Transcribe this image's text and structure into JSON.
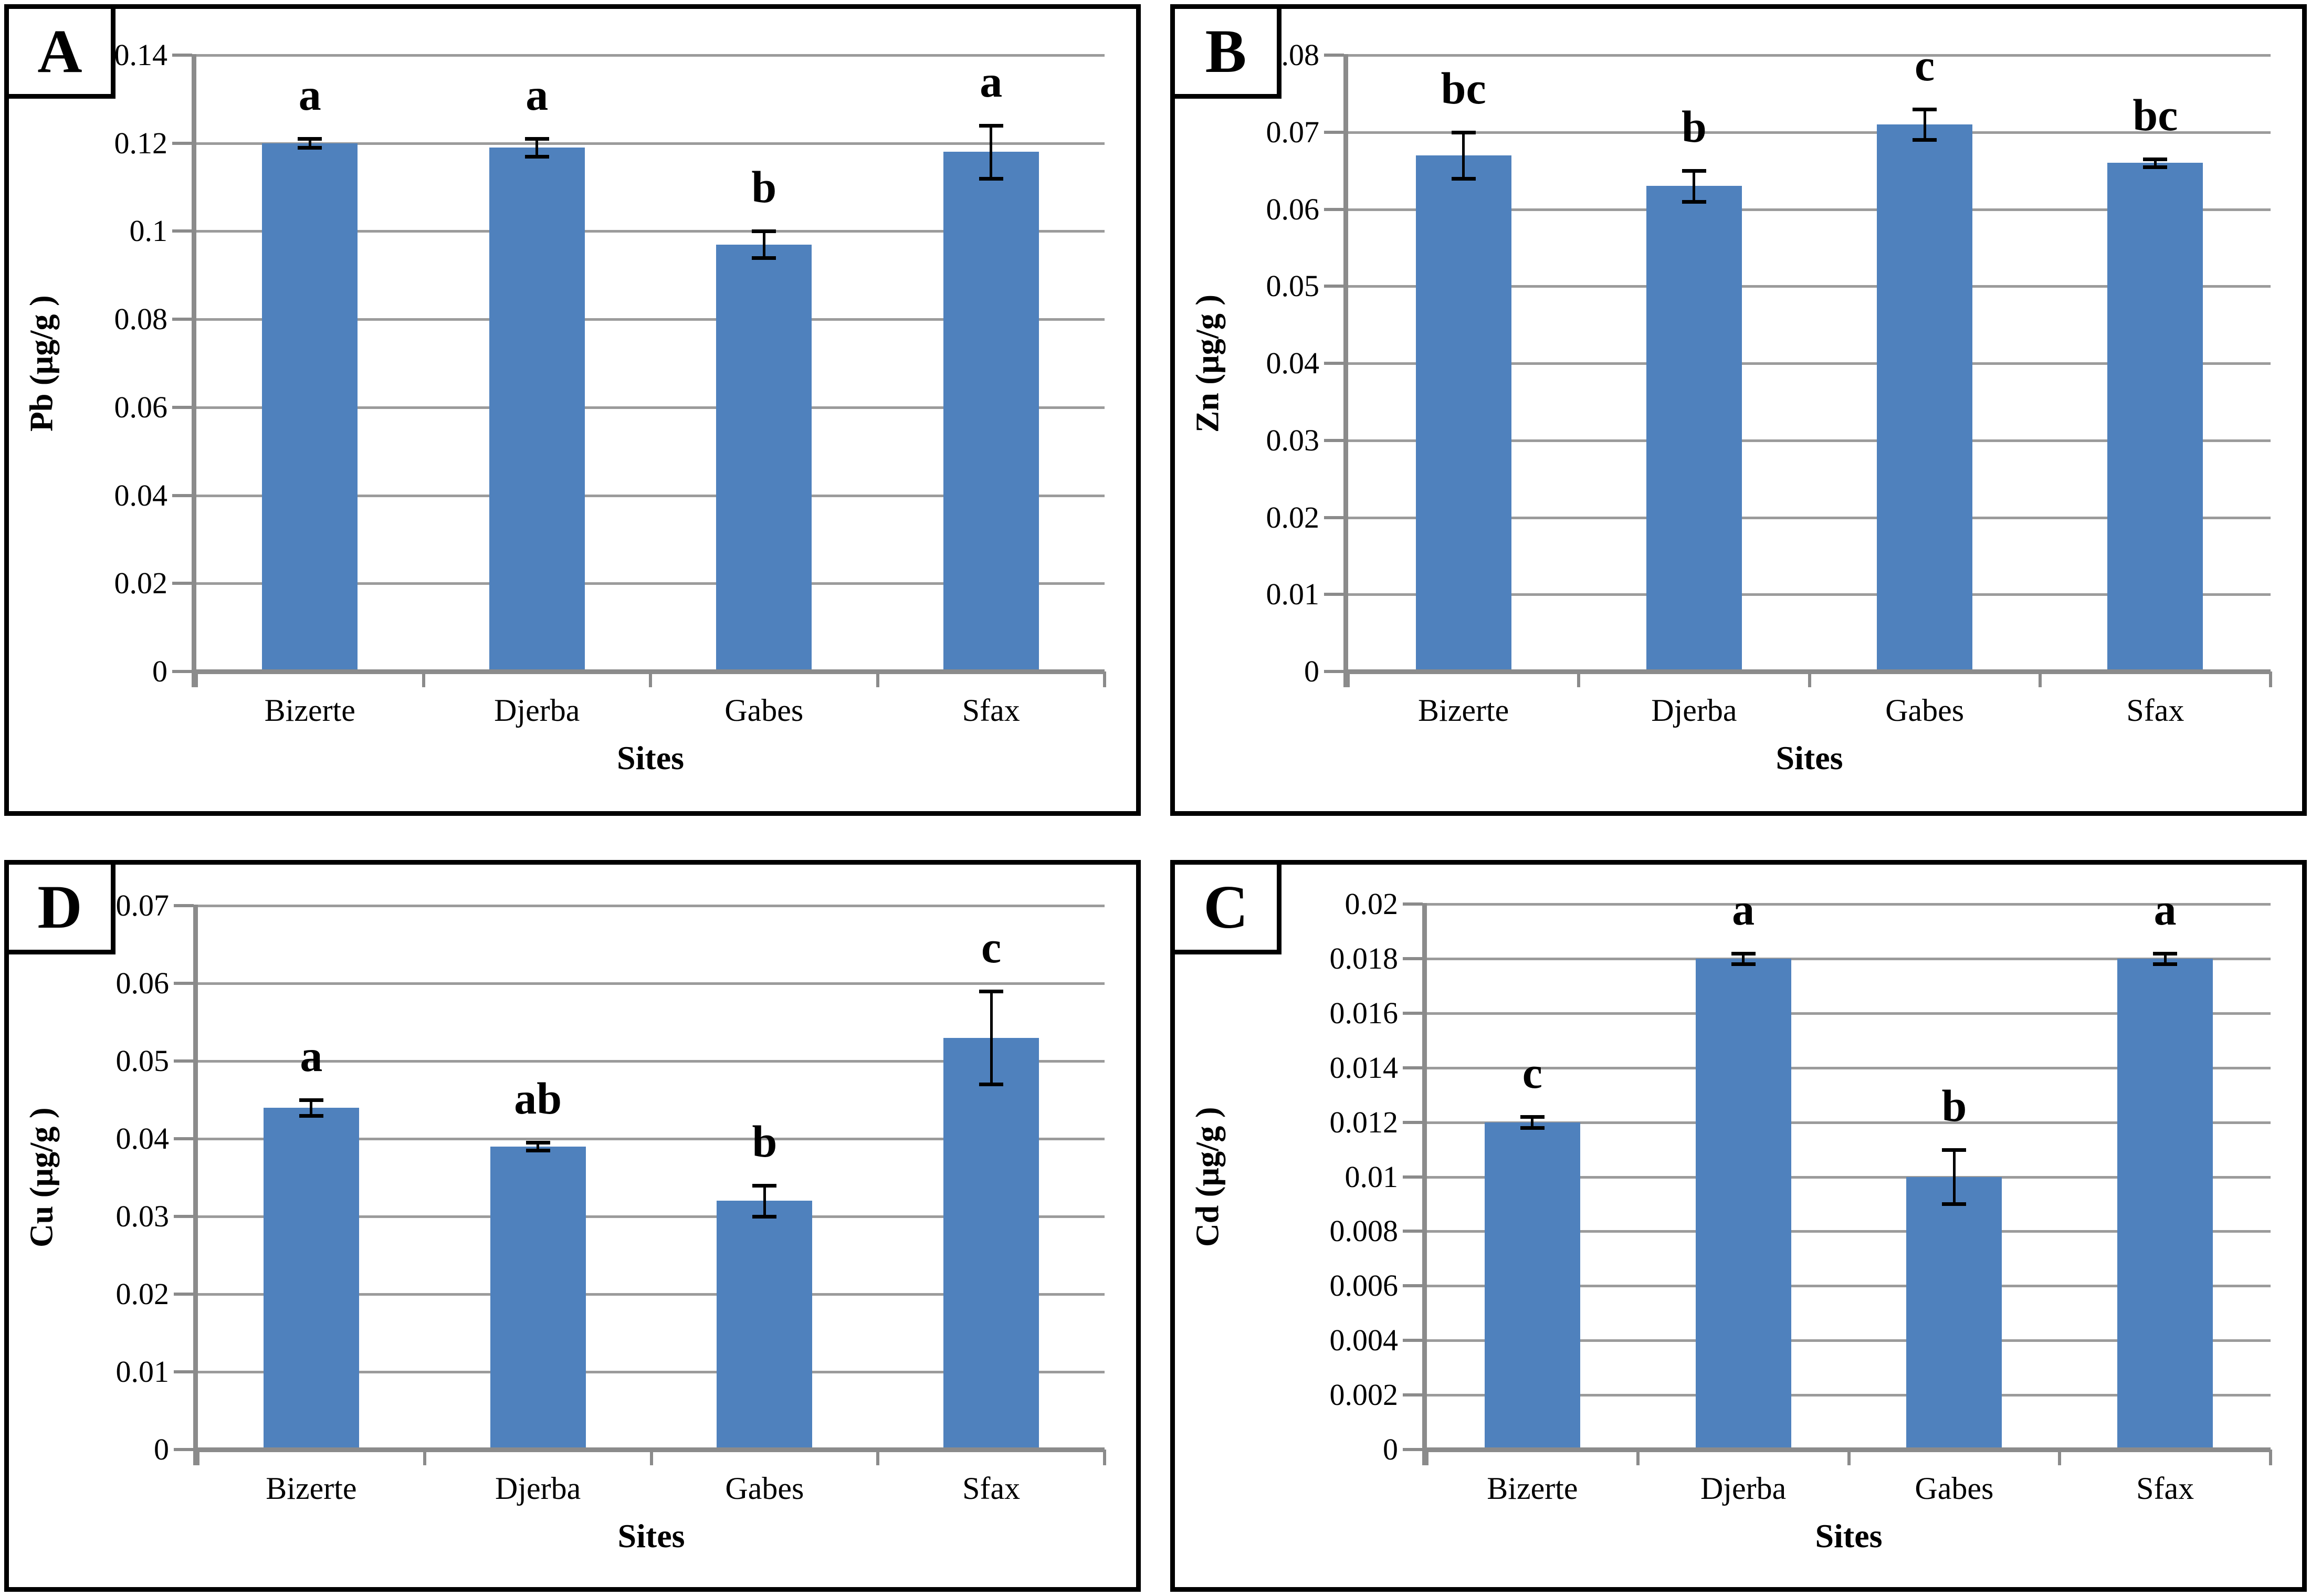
{
  "figure": {
    "xlabel": "Sites",
    "categories": [
      "Bizerte",
      "Djerba",
      "Gabes",
      "Sfax"
    ],
    "colors": {
      "bar": "#4F81BD",
      "gridline": "#9B9B9B",
      "axis": "#8B8B8B",
      "error_bar": "#000000",
      "panel_border": "#000000",
      "background": "#FFFFFF"
    }
  },
  "chart_data": [
    {
      "type": "bar",
      "panel_label": "A",
      "ylabel": "Pb (µg/g )",
      "xlabel": "Sites",
      "categories": [
        "Bizerte",
        "Djerba",
        "Gabes",
        "Sfax"
      ],
      "values": [
        0.12,
        0.119,
        0.097,
        0.118
      ],
      "errors": [
        0.001,
        0.002,
        0.003,
        0.006
      ],
      "letters": [
        "a",
        "a",
        "b",
        "a"
      ],
      "ylim": [
        0,
        0.14
      ],
      "ystep": 0.02,
      "yticks": [
        "0.14",
        "0.12",
        "0.1",
        "0.08",
        "0.06",
        "0.04",
        "0.02",
        "0"
      ],
      "grid": true,
      "legend": "none"
    },
    {
      "type": "bar",
      "panel_label": "B",
      "ylabel": "Zn (µg/g )",
      "xlabel": "Sites",
      "categories": [
        "Bizerte",
        "Djerba",
        "Gabes",
        "Sfax"
      ],
      "values": [
        0.067,
        0.063,
        0.071,
        0.066
      ],
      "errors": [
        0.003,
        0.002,
        0.002,
        0.0005
      ],
      "letters": [
        "bc",
        "b",
        "c",
        "bc"
      ],
      "ylim": [
        0,
        0.08
      ],
      "ystep": 0.01,
      "yticks": [
        "0.08",
        "0.07",
        "0.06",
        "0.05",
        "0.04",
        "0.03",
        "0.02",
        "0.01",
        "0"
      ],
      "grid": true,
      "legend": "none"
    },
    {
      "type": "bar",
      "panel_label": "D",
      "ylabel": "Cu (µg/g )",
      "xlabel": "Sites",
      "categories": [
        "Bizerte",
        "Djerba",
        "Gabes",
        "Sfax"
      ],
      "values": [
        0.044,
        0.039,
        0.032,
        0.053
      ],
      "errors": [
        0.001,
        0.0005,
        0.002,
        0.006
      ],
      "letters": [
        "a",
        "ab",
        "b",
        "c"
      ],
      "ylim": [
        0,
        0.07
      ],
      "ystep": 0.01,
      "yticks": [
        "0.07",
        "0.06",
        "0.05",
        "0.04",
        "0.03",
        "0.02",
        "0.01",
        "0"
      ],
      "grid": true,
      "legend": "none"
    },
    {
      "type": "bar",
      "panel_label": "C",
      "ylabel": "Cd (µg/g )",
      "xlabel": "Sites",
      "categories": [
        "Bizerte",
        "Djerba",
        "Gabes",
        "Sfax"
      ],
      "values": [
        0.012,
        0.018,
        0.01,
        0.018
      ],
      "errors": [
        0.0002,
        0.0002,
        0.001,
        0.0002
      ],
      "letters": [
        "c",
        "a",
        "b",
        "a"
      ],
      "ylim": [
        0,
        0.02
      ],
      "ystep": 0.002,
      "yticks": [
        "0.02",
        "0.018",
        "0.016",
        "0.014",
        "0.012",
        "0.01",
        "0.008",
        "0.006",
        "0.004",
        "0.002",
        "0"
      ],
      "grid": true,
      "legend": "none"
    }
  ]
}
